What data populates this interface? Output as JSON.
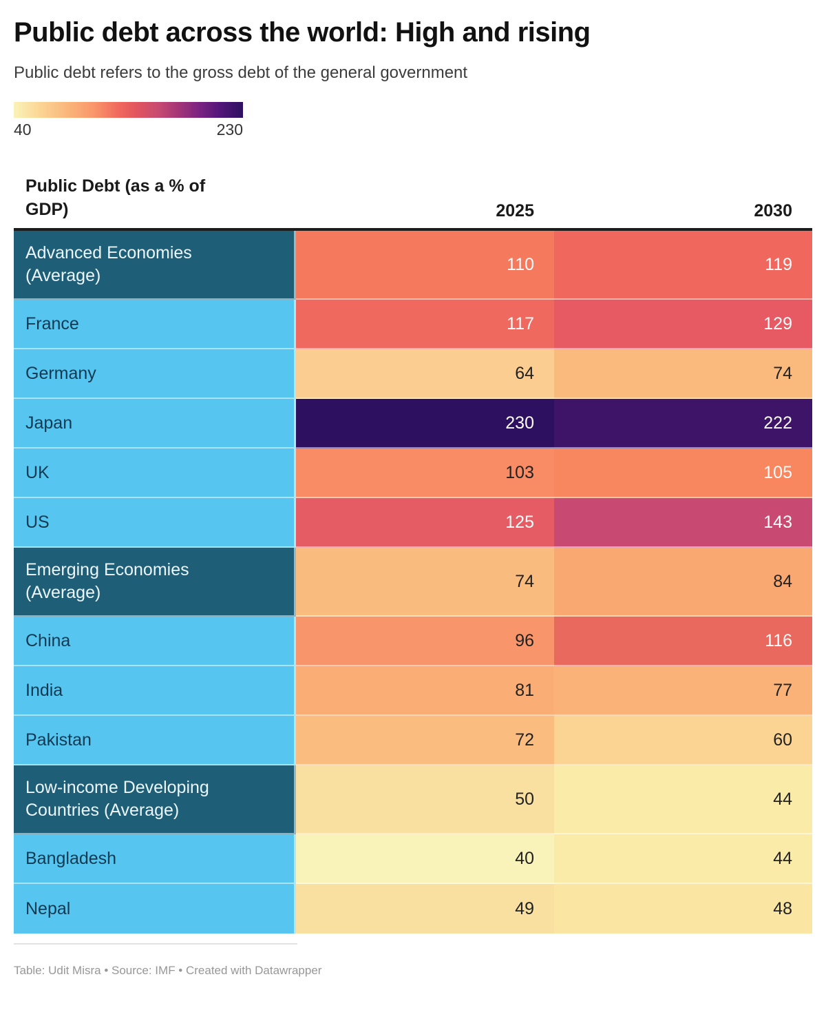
{
  "title": "Public debt across the world: High and rising",
  "subtitle": "Public debt refers to the gross debt of the general government",
  "legend": {
    "min": "40",
    "max": "230",
    "gradient_stops": [
      "#FAF3B9 0%",
      "#FBD493 12%",
      "#FAB279 25%",
      "#F9956A 35%",
      "#F0685D 46%",
      "#E0555F 54%",
      "#C84A72 63%",
      "#A33577 72%",
      "#7B2382 81%",
      "#521679 90%",
      "#2E1060 100%"
    ]
  },
  "colors": {
    "group_row_bg": "#1E5E76",
    "group_row_text": "#EAF6FB",
    "country_row_bg": "#56C6F1",
    "country_row_text": "#113A52",
    "table_top_border": "#1c1c1c"
  },
  "table": {
    "header": {
      "label": "Public Debt (as a % of GDP)",
      "col1": "2025",
      "col2": "2030"
    },
    "rows": [
      {
        "label": "Advanced Economies (Average)",
        "group": true,
        "tall": true,
        "v2025": "110",
        "bg2025": "#F4795D",
        "fg2025": "#FCFCFC",
        "v2030": "119",
        "bg2030": "#F0685D",
        "fg2030": "#FCFCFC"
      },
      {
        "label": "France",
        "group": false,
        "tall": false,
        "v2025": "117",
        "bg2025": "#EF695E",
        "fg2025": "#FCFCFC",
        "v2030": "129",
        "bg2030": "#E75A64",
        "fg2030": "#FCFCFC"
      },
      {
        "label": "Germany",
        "group": false,
        "tall": false,
        "v2025": "64",
        "bg2025": "#FBCD90",
        "fg2025": "#222222",
        "v2030": "74",
        "bg2030": "#FABA7E",
        "fg2030": "#222222"
      },
      {
        "label": "Japan",
        "group": false,
        "tall": false,
        "v2025": "230",
        "bg2025": "#2E1060",
        "fg2025": "#FCFCFC",
        "v2030": "222",
        "bg2030": "#3D1467",
        "fg2030": "#FCFCFC"
      },
      {
        "label": "UK",
        "group": false,
        "tall": false,
        "v2025": "103",
        "bg2025": "#F98C64",
        "fg2025": "#222222",
        "v2030": "105",
        "bg2030": "#F8865F",
        "fg2030": "#FCFCFC"
      },
      {
        "label": "US",
        "group": false,
        "tall": false,
        "v2025": "125",
        "bg2025": "#E55C65",
        "fg2025": "#FCFCFC",
        "v2030": "143",
        "bg2030": "#C84A72",
        "fg2030": "#FCFCFC"
      },
      {
        "label": "Emerging Economies (Average)",
        "group": true,
        "tall": true,
        "v2025": "74",
        "bg2025": "#FABB7F",
        "fg2025": "#222222",
        "v2030": "84",
        "bg2030": "#F9A872",
        "fg2030": "#222222"
      },
      {
        "label": "China",
        "group": false,
        "tall": false,
        "v2025": "96",
        "bg2025": "#F9956A",
        "fg2025": "#222222",
        "v2030": "116",
        "bg2030": "#E9695E",
        "fg2030": "#FCFCFC"
      },
      {
        "label": "India",
        "group": false,
        "tall": false,
        "v2025": "81",
        "bg2025": "#FAAD75",
        "fg2025": "#222222",
        "v2030": "77",
        "bg2030": "#FAB279",
        "fg2030": "#222222"
      },
      {
        "label": "Pakistan",
        "group": false,
        "tall": false,
        "v2025": "72",
        "bg2025": "#FABC7F",
        "fg2025": "#222222",
        "v2030": "60",
        "bg2030": "#FBD493",
        "fg2030": "#222222"
      },
      {
        "label": "Low-income Developing Countries (Average)",
        "group": true,
        "tall": true,
        "v2025": "50",
        "bg2025": "#F9DFA0",
        "fg2025": "#222222",
        "v2030": "44",
        "bg2030": "#FAEBA9",
        "fg2030": "#222222"
      },
      {
        "label": "Bangladesh",
        "group": false,
        "tall": false,
        "v2025": "40",
        "bg2025": "#FAF3B9",
        "fg2025": "#222222",
        "v2030": "44",
        "bg2030": "#FAEBA9",
        "fg2030": "#222222"
      },
      {
        "label": "Nepal",
        "group": false,
        "tall": false,
        "v2025": "49",
        "bg2025": "#F9E0A1",
        "fg2025": "#222222",
        "v2030": "48",
        "bg2030": "#FAE6A2",
        "fg2030": "#222222"
      }
    ]
  },
  "footer": "Table: Udit Misra • Source: IMF • Created with Datawrapper",
  "chart_data": {
    "type": "heatmap",
    "title": "Public debt across the world: High and rising",
    "subtitle": "Public debt refers to the gross debt of the general government",
    "value_label": "Public Debt (as a % of GDP)",
    "categories": [
      "Advanced Economies (Average)",
      "France",
      "Germany",
      "Japan",
      "UK",
      "US",
      "Emerging Economies (Average)",
      "China",
      "India",
      "Pakistan",
      "Low-income Developing Countries (Average)",
      "Bangladesh",
      "Nepal"
    ],
    "series": [
      {
        "name": "2025",
        "values": [
          110,
          117,
          64,
          230,
          103,
          125,
          74,
          96,
          81,
          72,
          50,
          40,
          49
        ]
      },
      {
        "name": "2030",
        "values": [
          119,
          129,
          74,
          222,
          105,
          143,
          84,
          116,
          77,
          60,
          44,
          44,
          48
        ]
      }
    ],
    "color_scale": {
      "min": 40,
      "max": 230,
      "min_color": "#FAF3B9",
      "max_color": "#2E1060"
    },
    "legend_position": "top-left",
    "source": "IMF",
    "table_credit": "Udit Misra"
  }
}
